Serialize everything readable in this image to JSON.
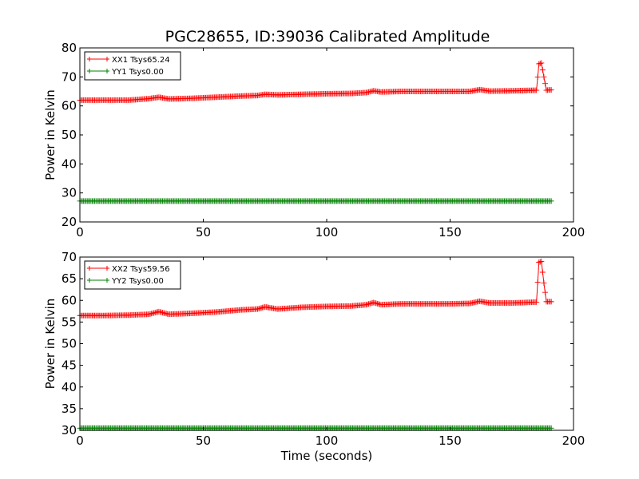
{
  "title": "PGC28655, ID:39036 Calibrated Amplitude",
  "chart_data": [
    {
      "type": "line",
      "ylabel": "Power in Kelvin",
      "xlabel": "",
      "xlim": [
        0,
        200
      ],
      "ylim": [
        20,
        80
      ],
      "xticks": [
        0,
        50,
        100,
        150,
        200
      ],
      "yticks": [
        20,
        30,
        40,
        50,
        60,
        70,
        80
      ],
      "legend_position": "top-left",
      "series": [
        {
          "name": "XX1 Tsys65.24",
          "color": "#ff0000",
          "marker": "plus",
          "x": [
            0,
            10,
            20,
            28,
            32,
            36,
            45,
            55,
            65,
            72,
            75,
            80,
            90,
            100,
            110,
            116,
            119,
            122,
            130,
            140,
            150,
            158,
            162,
            166,
            175,
            185,
            186,
            187,
            188,
            189,
            190,
            191
          ],
          "y": [
            62,
            62,
            62,
            62.5,
            63,
            62.4,
            62.6,
            63,
            63.4,
            63.6,
            64,
            63.8,
            64,
            64.2,
            64.3,
            64.6,
            65.2,
            64.8,
            65,
            65,
            65,
            65,
            65.6,
            65.1,
            65.2,
            65.4,
            74.5,
            74.8,
            70,
            65.4,
            65.5,
            65.5
          ]
        },
        {
          "name": "YY1 Tsys0.00",
          "color": "#008000",
          "marker": "plus",
          "x": [
            0,
            50,
            100,
            150,
            191
          ],
          "y": [
            27.2,
            27.2,
            27.2,
            27.2,
            27.2
          ]
        }
      ]
    },
    {
      "type": "line",
      "ylabel": "Power in Kelvin",
      "xlabel": "Time (seconds)",
      "xlim": [
        0,
        200
      ],
      "ylim": [
        30,
        70
      ],
      "xticks": [
        0,
        50,
        100,
        150,
        200
      ],
      "yticks": [
        30,
        35,
        40,
        45,
        50,
        55,
        60,
        65,
        70
      ],
      "legend_position": "top-left",
      "series": [
        {
          "name": "XX2 Tsys59.56",
          "color": "#ff0000",
          "marker": "plus",
          "x": [
            0,
            10,
            20,
            28,
            32,
            36,
            45,
            55,
            65,
            72,
            75,
            80,
            90,
            100,
            110,
            116,
            119,
            122,
            130,
            140,
            150,
            158,
            162,
            166,
            175,
            185,
            186,
            187,
            188,
            189,
            190,
            191
          ],
          "y": [
            56.5,
            56.5,
            56.6,
            56.8,
            57.4,
            56.8,
            57,
            57.3,
            57.8,
            58,
            58.5,
            58,
            58.4,
            58.6,
            58.7,
            59,
            59.5,
            59,
            59.2,
            59.2,
            59.2,
            59.3,
            59.8,
            59.4,
            59.4,
            59.6,
            68.8,
            69,
            64,
            59.7,
            59.7,
            59.7
          ]
        },
        {
          "name": "YY2 Tsys0.00",
          "color": "#008000",
          "marker": "plus",
          "x": [
            0,
            50,
            100,
            150,
            191
          ],
          "y": [
            30.5,
            30.5,
            30.5,
            30.5,
            30.5
          ]
        }
      ]
    }
  ]
}
